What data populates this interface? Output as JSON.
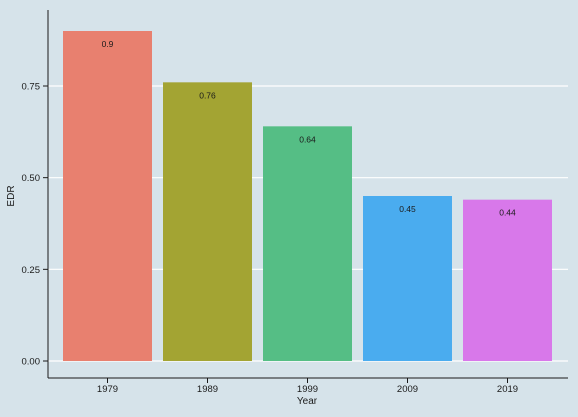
{
  "chart_data": {
    "type": "bar",
    "categories": [
      "1979",
      "1989",
      "1999",
      "2009",
      "2019"
    ],
    "values": [
      0.9,
      0.76,
      0.64,
      0.45,
      0.44
    ],
    "data_labels": [
      "0.9",
      "0.76",
      "0.64",
      "0.45",
      "0.44"
    ],
    "colors": [
      "#e8806f",
      "#a3a433",
      "#55be85",
      "#4aacef",
      "#d878ea"
    ],
    "xlabel": "Year",
    "ylabel": "EDR",
    "ylim": [
      0,
      0.9
    ],
    "yticks": [
      0,
      0.25,
      0.5,
      0.75
    ],
    "ytick_labels": [
      "0.00",
      "0.25",
      "0.50",
      "0.75"
    ],
    "grid": "horizontal",
    "legend": "none",
    "background_color": "#d6e3ea",
    "grid_color": "#ffffff"
  }
}
